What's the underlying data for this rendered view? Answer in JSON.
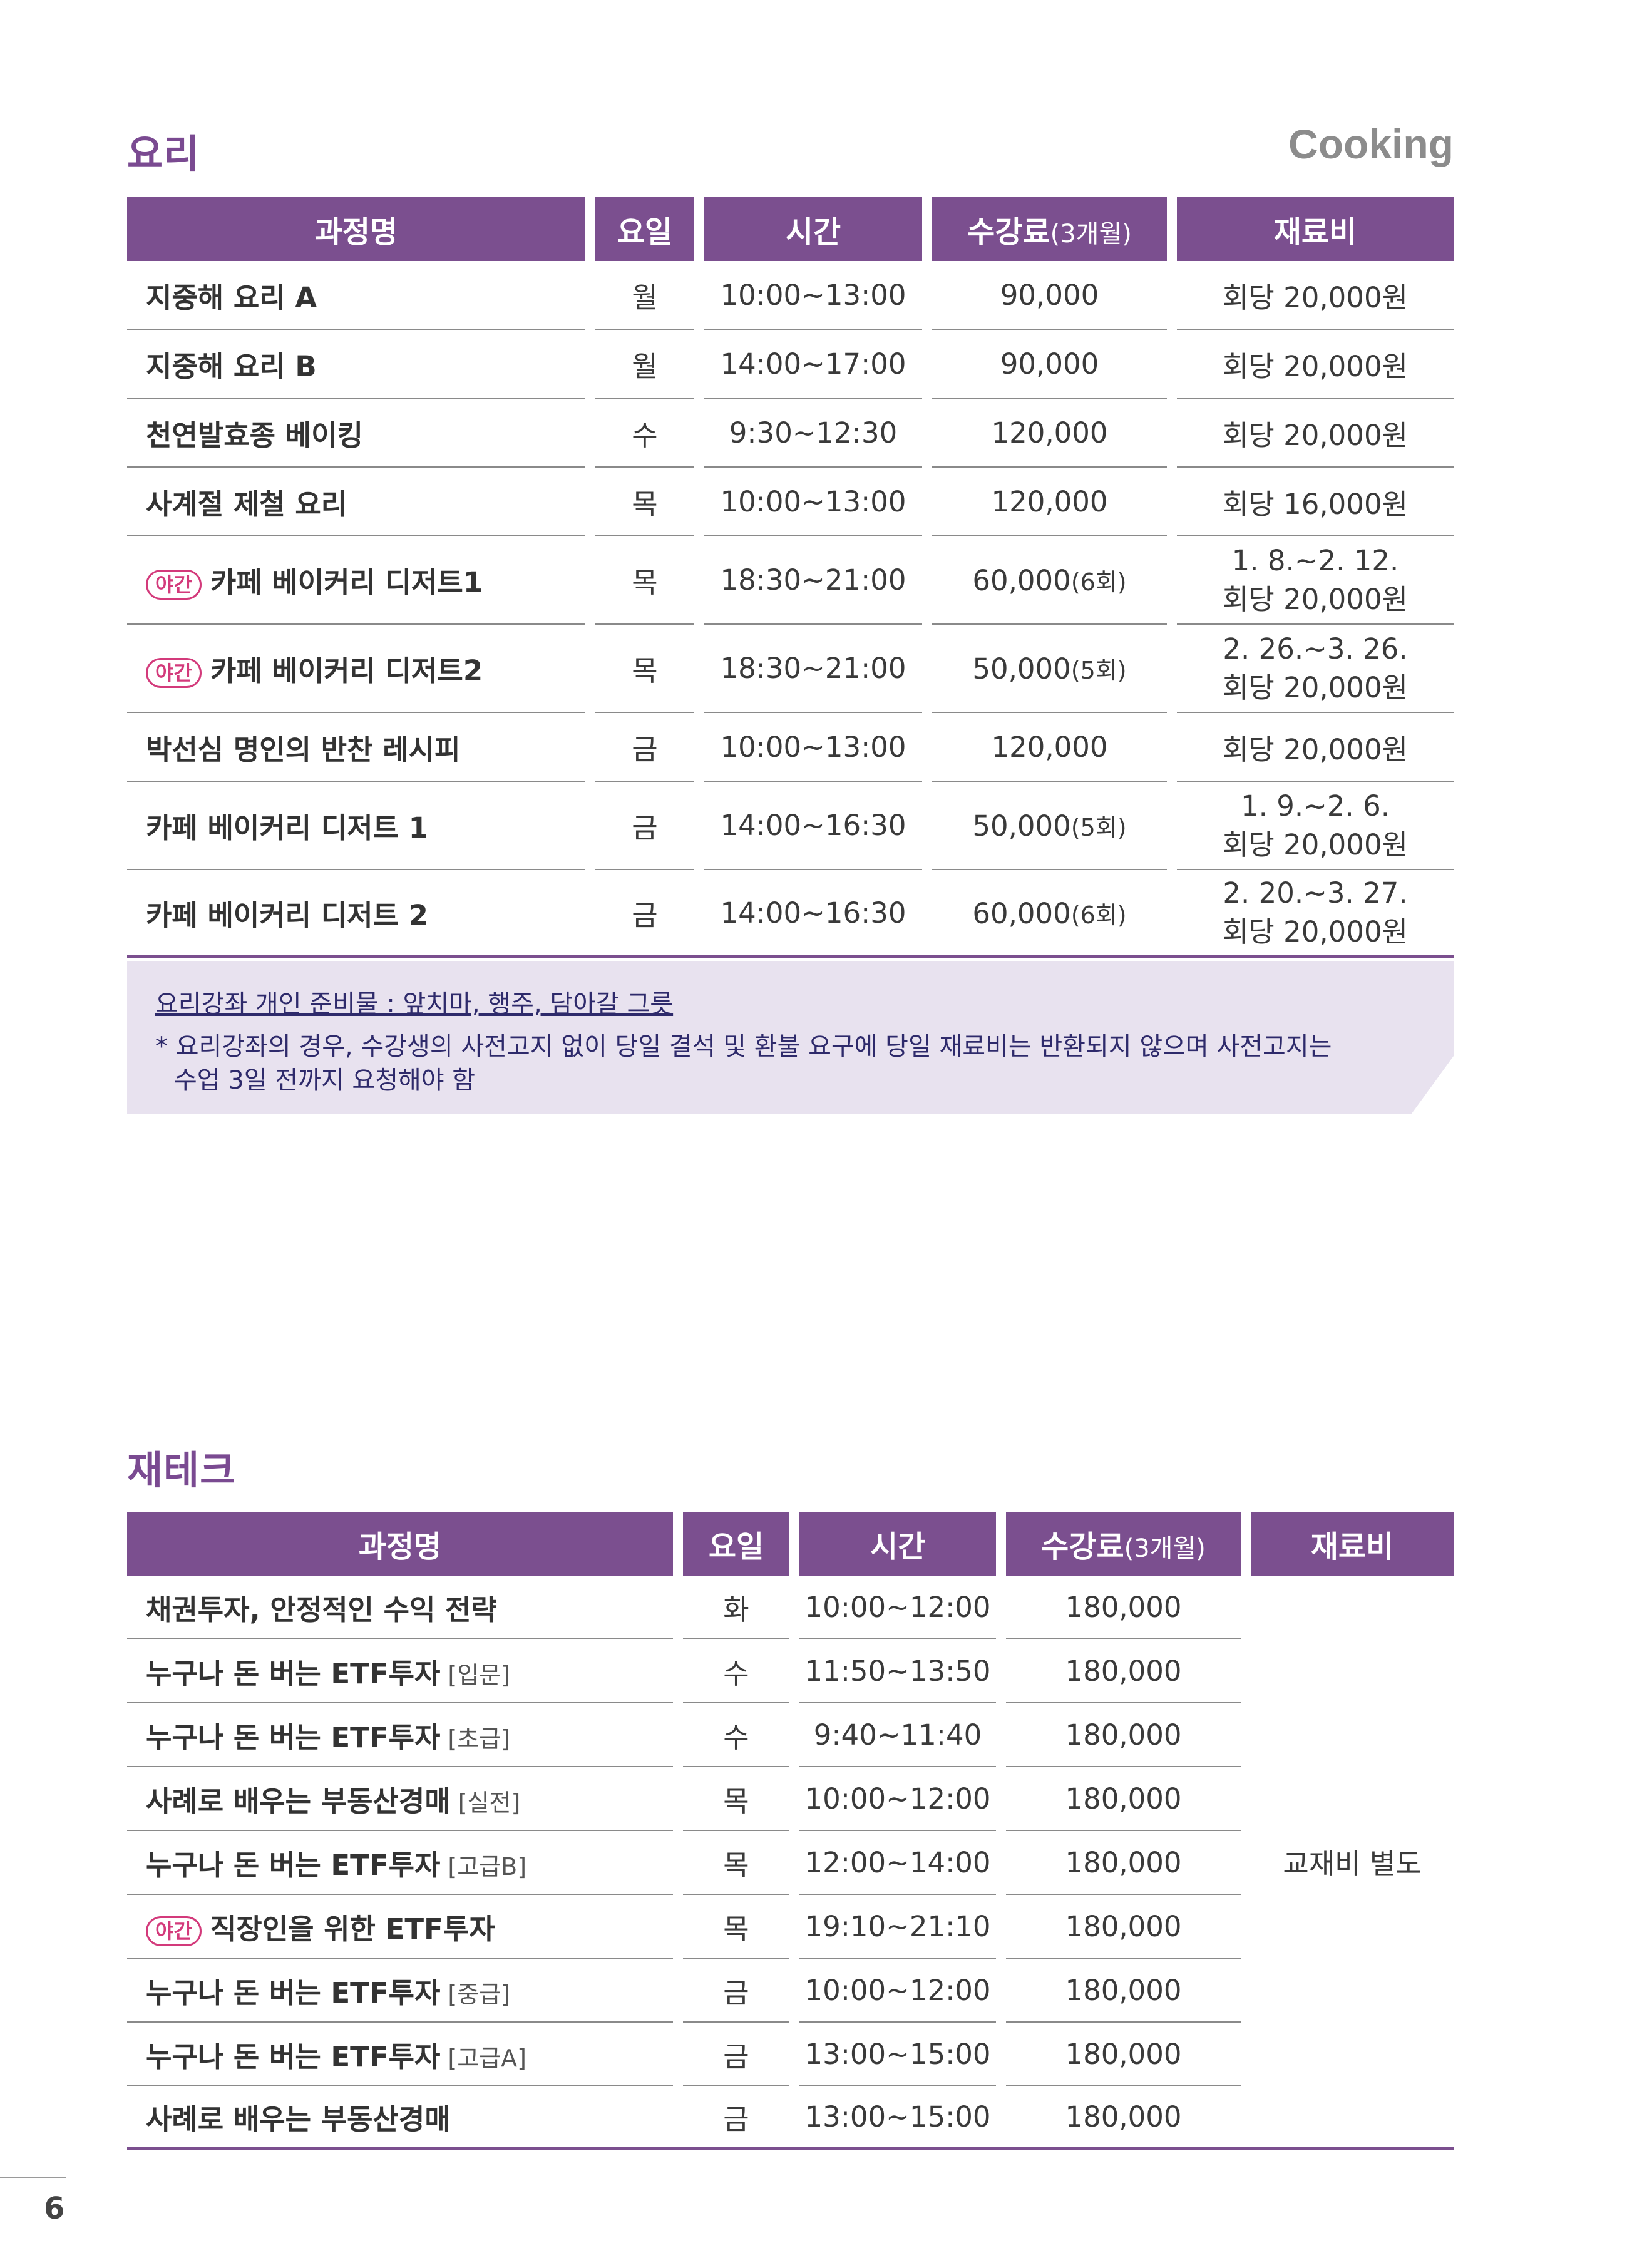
{
  "cooking": {
    "title": "요리",
    "title_en": "Cooking",
    "headers": {
      "name": "과정명",
      "day": "요일",
      "time": "시간",
      "fee": "수강료",
      "fee_note": "(3개월)",
      "material": "재료비"
    },
    "rows": [
      {
        "tag": "",
        "name": "지중해 요리 A",
        "day": "월",
        "time": "10:00~13:00",
        "fee": "90,000",
        "fee_note": "",
        "material_1": "회당 20,000원",
        "material_2": ""
      },
      {
        "tag": "",
        "name": "지중해 요리 B",
        "day": "월",
        "time": "14:00~17:00",
        "fee": "90,000",
        "fee_note": "",
        "material_1": "회당 20,000원",
        "material_2": ""
      },
      {
        "tag": "",
        "name": "천연발효종 베이킹",
        "day": "수",
        "time": "9:30~12:30",
        "fee": "120,000",
        "fee_note": "",
        "material_1": "회당 20,000원",
        "material_2": ""
      },
      {
        "tag": "",
        "name": "사계절 제철 요리",
        "day": "목",
        "time": "10:00~13:00",
        "fee": "120,000",
        "fee_note": "",
        "material_1": "회당 16,000원",
        "material_2": ""
      },
      {
        "tag": "야간",
        "name": "카페 베이커리 디저트1",
        "day": "목",
        "time": "18:30~21:00",
        "fee": "60,000",
        "fee_note": "(6회)",
        "material_1": "1. 8.~2. 12.",
        "material_2": "회당 20,000원"
      },
      {
        "tag": "야간",
        "name": "카페 베이커리 디저트2",
        "day": "목",
        "time": "18:30~21:00",
        "fee": "50,000",
        "fee_note": "(5회)",
        "material_1": "2. 26.~3. 26.",
        "material_2": "회당 20,000원"
      },
      {
        "tag": "",
        "name": "박선심 명인의 반찬 레시피",
        "day": "금",
        "time": "10:00~13:00",
        "fee": "120,000",
        "fee_note": "",
        "material_1": "회당 20,000원",
        "material_2": ""
      },
      {
        "tag": "",
        "name": "카페 베이커리 디저트 1",
        "day": "금",
        "time": "14:00~16:30",
        "fee": "50,000",
        "fee_note": "(5회)",
        "material_1": "1. 9.~2. 6.",
        "material_2": "회당 20,000원"
      },
      {
        "tag": "",
        "name": "카페 베이커리 디저트 2",
        "day": "금",
        "time": "14:00~16:30",
        "fee": "60,000",
        "fee_note": "(6회)",
        "material_1": "2. 20.~3. 27.",
        "material_2": "회당 20,000원"
      }
    ],
    "note_line1": "요리강좌 개인 준비물 : 앞치마, 행주, 담아갈 그릇",
    "note_line2": "* 요리강좌의 경우, 수강생의 사전고지 없이 당일 결석 및 환불 요구에 당일 재료비는 반환되지 않으며 사전고지는",
    "note_line3": "  수업 3일 전까지 요청해야 함"
  },
  "finance": {
    "title": "재테크",
    "headers": {
      "name": "과정명",
      "day": "요일",
      "time": "시간",
      "fee": "수강료",
      "fee_note": "(3개월)",
      "material": "재료비"
    },
    "material_merged": "교재비 별도",
    "rows": [
      {
        "tag": "",
        "name": "채권투자, 안정적인 수익 전략",
        "level": "",
        "day": "화",
        "time": "10:00~12:00",
        "fee": "180,000"
      },
      {
        "tag": "",
        "name": "누구나 돈 버는 ETF투자",
        "level": "[입문]",
        "day": "수",
        "time": "11:50~13:50",
        "fee": "180,000"
      },
      {
        "tag": "",
        "name": "누구나 돈 버는 ETF투자",
        "level": "[초급]",
        "day": "수",
        "time": "9:40~11:40",
        "fee": "180,000"
      },
      {
        "tag": "",
        "name": "사례로 배우는 부동산경매",
        "level": "[실전]",
        "day": "목",
        "time": "10:00~12:00",
        "fee": "180,000"
      },
      {
        "tag": "",
        "name": "누구나 돈 버는 ETF투자",
        "level": "[고급B]",
        "day": "목",
        "time": "12:00~14:00",
        "fee": "180,000"
      },
      {
        "tag": "야간",
        "name": "직장인을 위한 ETF투자",
        "level": "",
        "day": "목",
        "time": "19:10~21:10",
        "fee": "180,000"
      },
      {
        "tag": "",
        "name": "누구나 돈 버는 ETF투자",
        "level": "[중급]",
        "day": "금",
        "time": "10:00~12:00",
        "fee": "180,000"
      },
      {
        "tag": "",
        "name": "누구나 돈 버는 ETF투자",
        "level": "[고급A]",
        "day": "금",
        "time": "13:00~15:00",
        "fee": "180,000"
      },
      {
        "tag": "",
        "name": "사례로 배우는 부동산경매",
        "level": "",
        "day": "금",
        "time": "13:00~15:00",
        "fee": "180,000"
      }
    ]
  },
  "page_number": "6",
  "colors": {
    "accent": "#7b4f8f",
    "title": "#7a4a91",
    "tag": "#d33a7b",
    "note_bg": "#e8e2ef"
  }
}
